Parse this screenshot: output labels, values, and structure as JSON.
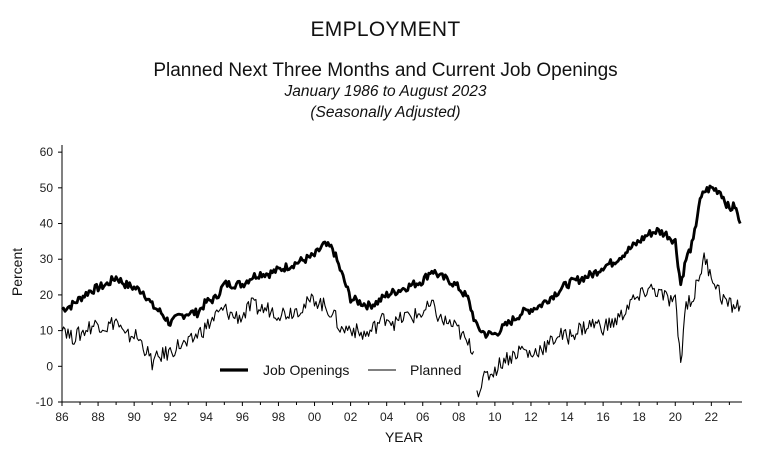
{
  "header": {
    "title": "EMPLOYMENT",
    "subtitle": "Planned Next Three Months and Current Job Openings",
    "period": "January 1986 to August 2023",
    "adjustment": "(Seasonally Adjusted)"
  },
  "chart_data": {
    "type": "line",
    "xlabel": "YEAR",
    "ylabel": "Percent",
    "xlim": [
      1986,
      2023.7
    ],
    "ylim": [
      -10,
      62
    ],
    "yticks": [
      -10,
      0,
      10,
      20,
      30,
      40,
      50,
      60
    ],
    "xticks": [
      "86",
      "88",
      "90",
      "92",
      "94",
      "96",
      "98",
      "00",
      "02",
      "04",
      "06",
      "08",
      "10",
      "12",
      "14",
      "16",
      "18",
      "20",
      "22"
    ],
    "grid": false,
    "legend": "bottom-center",
    "colors": {
      "line": "#000000"
    },
    "series": [
      {
        "name": "Job Openings",
        "style": "thick",
        "points": [
          [
            1986.0,
            16
          ],
          [
            1986.5,
            17
          ],
          [
            1987.0,
            19
          ],
          [
            1987.5,
            21
          ],
          [
            1988.0,
            22
          ],
          [
            1988.5,
            23
          ],
          [
            1989.0,
            25
          ],
          [
            1989.5,
            23
          ],
          [
            1990.0,
            22
          ],
          [
            1990.5,
            21
          ],
          [
            1991.0,
            17
          ],
          [
            1991.5,
            15
          ],
          [
            1992.0,
            12
          ],
          [
            1992.5,
            14
          ],
          [
            1993.0,
            15
          ],
          [
            1993.5,
            15
          ],
          [
            1994.0,
            18
          ],
          [
            1994.5,
            19
          ],
          [
            1995.0,
            23
          ],
          [
            1995.5,
            23
          ],
          [
            1996.0,
            23
          ],
          [
            1996.5,
            25
          ],
          [
            1997.0,
            26
          ],
          [
            1997.5,
            26
          ],
          [
            1998.0,
            27
          ],
          [
            1998.5,
            28
          ],
          [
            1999.0,
            29
          ],
          [
            1999.5,
            30
          ],
          [
            2000.0,
            31
          ],
          [
            2000.5,
            34
          ],
          [
            2001.0,
            33
          ],
          [
            2001.5,
            26
          ],
          [
            2002.0,
            19
          ],
          [
            2002.5,
            18
          ],
          [
            2003.0,
            17
          ],
          [
            2003.5,
            18
          ],
          [
            2004.0,
            20
          ],
          [
            2004.5,
            21
          ],
          [
            2005.0,
            22
          ],
          [
            2005.5,
            23
          ],
          [
            2006.0,
            24
          ],
          [
            2006.5,
            27
          ],
          [
            2007.0,
            25
          ],
          [
            2007.5,
            24
          ],
          [
            2008.0,
            22
          ],
          [
            2008.5,
            19
          ],
          [
            2009.0,
            11
          ],
          [
            2009.5,
            9
          ],
          [
            2010.0,
            9
          ],
          [
            2010.5,
            11
          ],
          [
            2011.0,
            13
          ],
          [
            2011.5,
            15
          ],
          [
            2012.0,
            16
          ],
          [
            2012.5,
            17
          ],
          [
            2013.0,
            19
          ],
          [
            2013.5,
            21
          ],
          [
            2014.0,
            23
          ],
          [
            2014.5,
            24
          ],
          [
            2015.0,
            25
          ],
          [
            2015.5,
            26
          ],
          [
            2016.0,
            28
          ],
          [
            2016.5,
            29
          ],
          [
            2017.0,
            31
          ],
          [
            2017.5,
            33
          ],
          [
            2018.0,
            35
          ],
          [
            2018.5,
            37
          ],
          [
            2019.0,
            38
          ],
          [
            2019.5,
            37
          ],
          [
            2020.0,
            35
          ],
          [
            2020.3,
            23
          ],
          [
            2020.6,
            30
          ],
          [
            2021.0,
            35
          ],
          [
            2021.3,
            45
          ],
          [
            2021.6,
            49
          ],
          [
            2022.0,
            50
          ],
          [
            2022.5,
            49
          ],
          [
            2023.0,
            44
          ],
          [
            2023.3,
            45
          ],
          [
            2023.6,
            40
          ]
        ]
      },
      {
        "name": "Planned",
        "style": "thin",
        "points": [
          [
            1986.0,
            12
          ],
          [
            1986.5,
            8
          ],
          [
            1987.0,
            9
          ],
          [
            1987.5,
            11
          ],
          [
            1988.0,
            12
          ],
          [
            1988.5,
            11
          ],
          [
            1989.0,
            13
          ],
          [
            1989.5,
            8
          ],
          [
            1990.0,
            9
          ],
          [
            1990.5,
            6
          ],
          [
            1991.0,
            1
          ],
          [
            1991.5,
            3
          ],
          [
            1992.0,
            4
          ],
          [
            1992.5,
            6
          ],
          [
            1993.0,
            6
          ],
          [
            1993.5,
            9
          ],
          [
            1994.0,
            11
          ],
          [
            1994.5,
            14
          ],
          [
            1995.0,
            16
          ],
          [
            1995.5,
            14
          ],
          [
            1996.0,
            14
          ],
          [
            1996.5,
            17
          ],
          [
            1997.0,
            16
          ],
          [
            1997.5,
            16
          ],
          [
            1998.0,
            15
          ],
          [
            1998.5,
            15
          ],
          [
            1999.0,
            16
          ],
          [
            1999.5,
            17
          ],
          [
            2000.0,
            19
          ],
          [
            2000.5,
            17
          ],
          [
            2001.0,
            15
          ],
          [
            2001.5,
            10
          ],
          [
            2002.0,
            11
          ],
          [
            2002.5,
            9
          ],
          [
            2003.0,
            9
          ],
          [
            2003.5,
            12
          ],
          [
            2004.0,
            14
          ],
          [
            2004.5,
            12
          ],
          [
            2005.0,
            14
          ],
          [
            2005.5,
            14
          ],
          [
            2006.0,
            15
          ],
          [
            2006.5,
            17
          ],
          [
            2007.0,
            13
          ],
          [
            2007.5,
            12
          ],
          [
            2008.0,
            10
          ],
          [
            2008.5,
            6
          ],
          [
            2008.9,
            5
          ],
          [
            2009.0,
            -7
          ],
          [
            2009.5,
            -3
          ],
          [
            2010.0,
            -1
          ],
          [
            2010.5,
            2
          ],
          [
            2011.0,
            3
          ],
          [
            2011.5,
            5
          ],
          [
            2012.0,
            3
          ],
          [
            2012.5,
            5
          ],
          [
            2013.0,
            6
          ],
          [
            2013.5,
            9
          ],
          [
            2014.0,
            8
          ],
          [
            2014.5,
            10
          ],
          [
            2015.0,
            11
          ],
          [
            2015.5,
            12
          ],
          [
            2016.0,
            11
          ],
          [
            2016.5,
            12
          ],
          [
            2017.0,
            14
          ],
          [
            2017.5,
            18
          ],
          [
            2018.0,
            19
          ],
          [
            2018.5,
            22
          ],
          [
            2019.0,
            21
          ],
          [
            2019.5,
            19
          ],
          [
            2020.0,
            18
          ],
          [
            2020.3,
            1
          ],
          [
            2020.6,
            18
          ],
          [
            2021.0,
            19
          ],
          [
            2021.3,
            25
          ],
          [
            2021.6,
            30
          ],
          [
            2022.0,
            26
          ],
          [
            2022.5,
            20
          ],
          [
            2023.0,
            17
          ],
          [
            2023.3,
            17
          ],
          [
            2023.6,
            17
          ]
        ]
      }
    ]
  }
}
